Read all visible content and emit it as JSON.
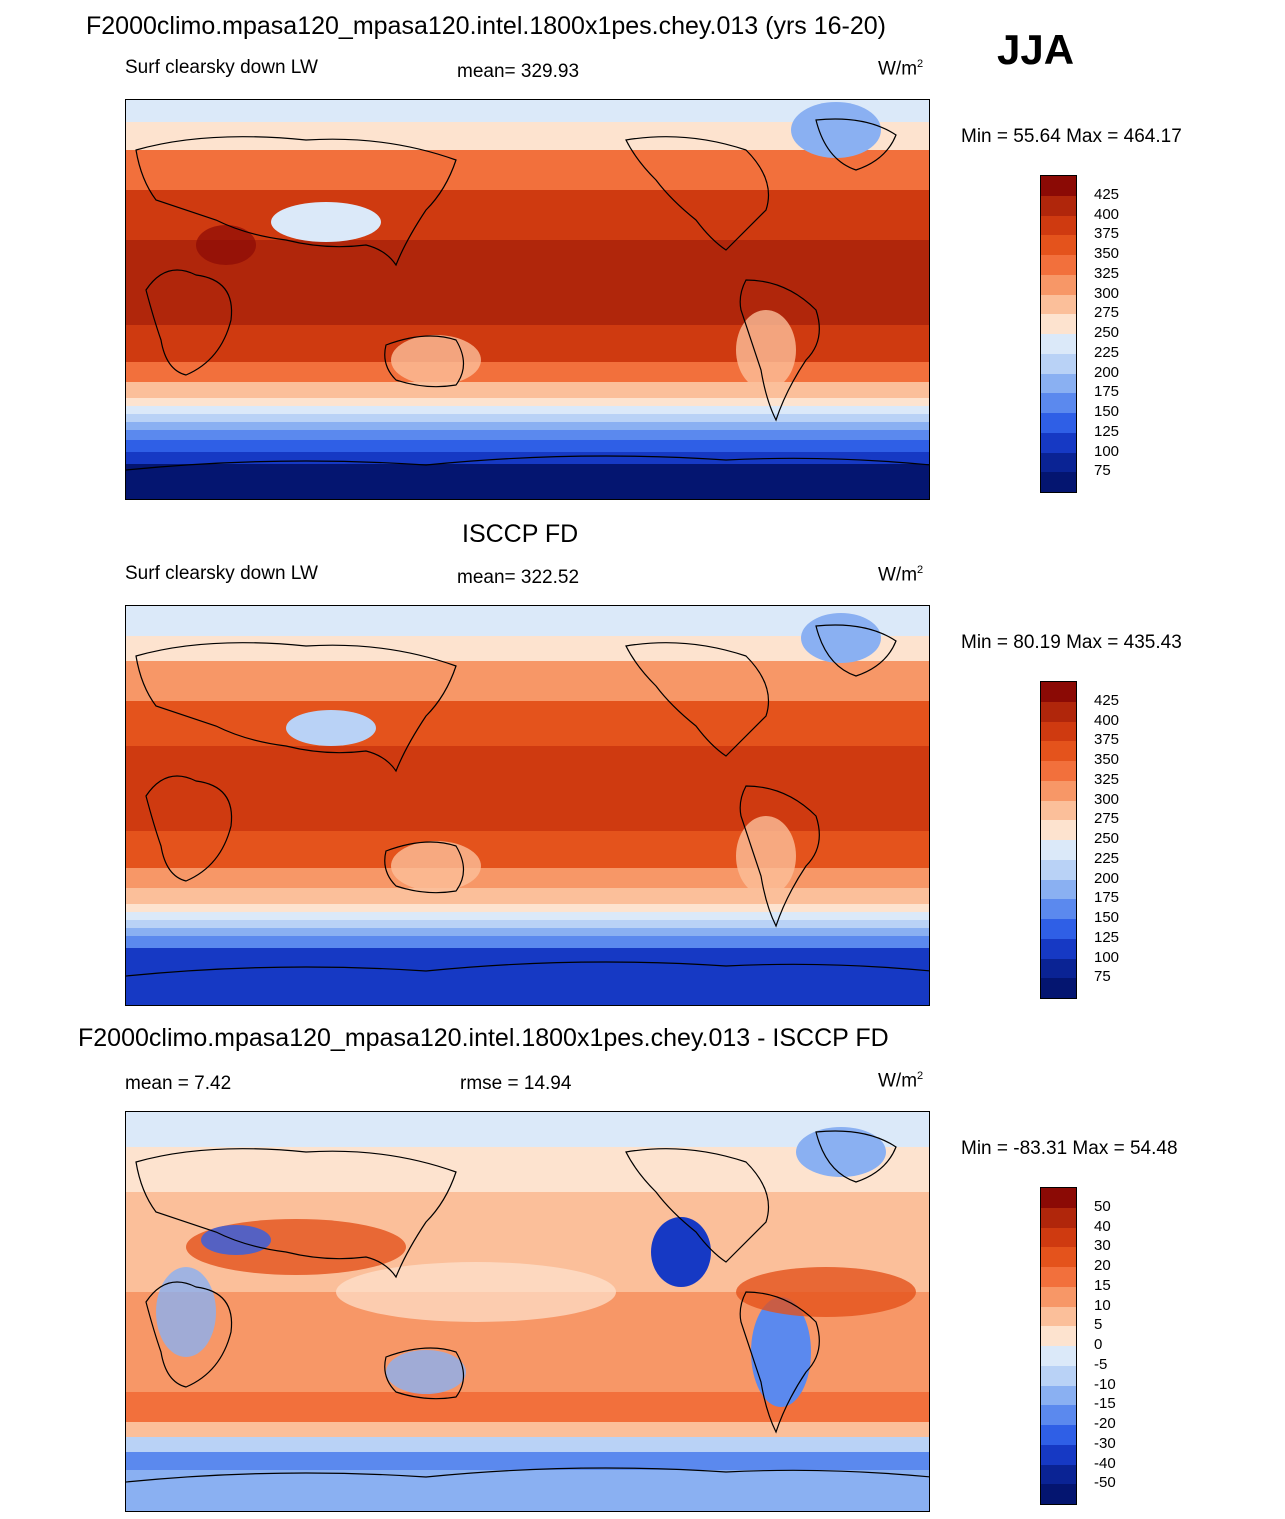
{
  "header": {
    "title": "F2000climo.mpasa120_mpasa120.intel.1800x1pes.chey.013 (yrs 16-20)",
    "season": "JJA"
  },
  "panels": [
    {
      "id": "model",
      "title": "",
      "variable": "Surf clearsky down LW",
      "stat": "mean= 329.93",
      "units_base": "W/m",
      "units_exp": "2",
      "minmax": "Min =  55.64 Max = 464.17"
    },
    {
      "id": "obs",
      "title": "ISCCP FD",
      "variable": "Surf clearsky down LW",
      "stat": "mean= 322.52",
      "units_base": "W/m",
      "units_exp": "2",
      "minmax": "Min =  80.19 Max = 435.43"
    },
    {
      "id": "diff",
      "title": "F2000climo.mpasa120_mpasa120.intel.1800x1pes.chey.013 - ISCCP FD",
      "variable": "mean =   7.42",
      "stat": "rmse =  14.94",
      "units_base": "W/m",
      "units_exp": "2",
      "minmax": "Min = -83.31 Max =  54.48"
    }
  ],
  "colorbars": {
    "field": {
      "labels": [
        "425",
        "400",
        "375",
        "350",
        "325",
        "300",
        "275",
        "250",
        "225",
        "200",
        "175",
        "150",
        "125",
        "100",
        "75"
      ],
      "colors": [
        "#8b0a05",
        "#b0260b",
        "#cf3a10",
        "#e4531c",
        "#f2703c",
        "#f79767",
        "#fbbf9a",
        "#fde3cf",
        "#dbe9f9",
        "#b9d2f6",
        "#8ab0f2",
        "#5b89ee",
        "#2f5fe6",
        "#1639c4",
        "#0a2394",
        "#041570"
      ]
    },
    "diff": {
      "labels": [
        "50",
        "40",
        "30",
        "20",
        "15",
        "10",
        "5",
        "0",
        "-5",
        "-10",
        "-15",
        "-20",
        "-30",
        "-40",
        "-50"
      ],
      "colors": [
        "#8b0a05",
        "#b0260b",
        "#cf3a10",
        "#e4531c",
        "#f2703c",
        "#f79767",
        "#fbbf9a",
        "#fde3cf",
        "#dbe9f9",
        "#b9d2f6",
        "#8ab0f2",
        "#5b89ee",
        "#2f5fe6",
        "#1639c4",
        "#0a2394",
        "#041570"
      ]
    }
  }
}
